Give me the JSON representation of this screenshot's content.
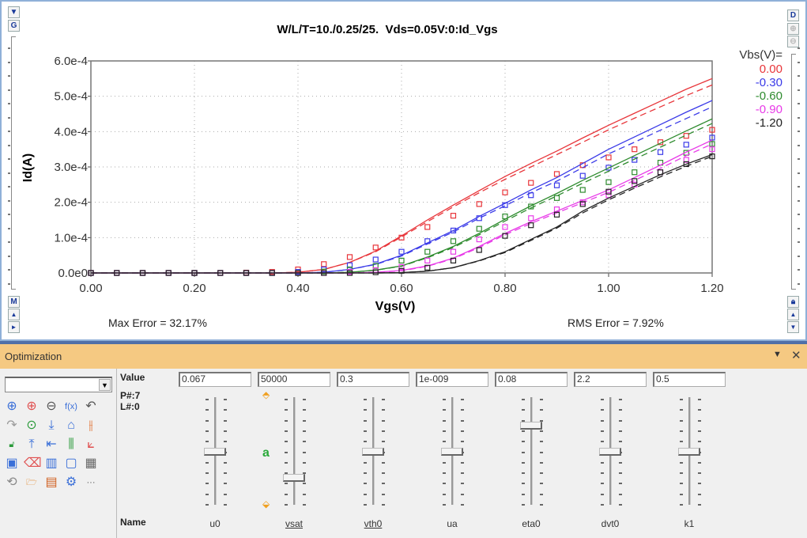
{
  "chart_window": {
    "left_toolbar": {
      "top_button": "▼",
      "g_button": "G",
      "m_button": "M",
      "up_button": "▲",
      "right_button": "►"
    },
    "right_toolbar": {
      "d_button": "D",
      "lock_icon": "lock-icon",
      "up_button": "▲",
      "down_button": "▼"
    },
    "max_error": "Max Error = 32.17%",
    "rms_error": "RMS Error = 7.92%"
  },
  "chart_data": {
    "type": "line",
    "title": "W/L/T=10./0.25/25.  Vds=0.05V:0:Id_Vgs",
    "xlabel": "Vgs(V)",
    "ylabel": "Id(A)",
    "xlim": [
      0,
      1.2
    ],
    "ylim": [
      0,
      0.0006
    ],
    "xticks": [
      "0.00",
      "0.20",
      "0.40",
      "0.60",
      "0.80",
      "1.00",
      "1.20"
    ],
    "yticks": [
      "0.0e0",
      "1.0e-4",
      "2.0e-4",
      "3.0e-4",
      "4.0e-4",
      "5.0e-4",
      "6.0e-4"
    ],
    "grid": true,
    "legend_title": "Vbs(V)=",
    "legend_placement": "top-right",
    "x": [
      0,
      0.05,
      0.1,
      0.15,
      0.2,
      0.25,
      0.3,
      0.35,
      0.4,
      0.45,
      0.5,
      0.55,
      0.6,
      0.65,
      0.7,
      0.75,
      0.8,
      0.85,
      0.9,
      0.95,
      1.0,
      1.05,
      1.1,
      1.15,
      1.2
    ],
    "series": [
      {
        "name": "0.00",
        "color": "#e8353a",
        "simulated": [
          0,
          0,
          0,
          0,
          0,
          0,
          0,
          0,
          2e-06,
          1e-05,
          3e-05,
          6.2e-05,
          0.000105,
          0.00015,
          0.000192,
          0.000233,
          0.000273,
          0.00031,
          0.000345,
          0.000382,
          0.000418,
          0.000452,
          0.000486,
          0.00052,
          0.00055
        ],
        "simulated_dashed": [
          0,
          0,
          0,
          0,
          0,
          0,
          0,
          0,
          2e-06,
          1e-05,
          3e-05,
          6e-05,
          0.000102,
          0.000145,
          0.000187,
          0.000227,
          0.000265,
          0.0003,
          0.000335,
          0.00037,
          0.000405,
          0.000438,
          0.00047,
          0.000502,
          0.000532
        ],
        "measured": [
          0,
          0,
          0,
          0,
          0,
          0,
          1e-06,
          3e-06,
          1e-05,
          2.5e-05,
          4.5e-05,
          7.2e-05,
          0.0001,
          0.00013,
          0.000162,
          0.000195,
          0.000228,
          0.000255,
          0.00028,
          0.000305,
          0.000327,
          0.00035,
          0.00037,
          0.000388,
          0.000405
        ]
      },
      {
        "name": "-0.30",
        "color": "#3a3ae8",
        "simulated": [
          0,
          0,
          0,
          0,
          0,
          0,
          0,
          0,
          0,
          2e-06,
          1e-05,
          2.5e-05,
          5e-05,
          8.5e-05,
          0.00012,
          0.00016,
          0.000197,
          0.000235,
          0.00027,
          0.00031,
          0.00035,
          0.000385,
          0.00042,
          0.000455,
          0.000488
        ],
        "simulated_dashed": [
          0,
          0,
          0,
          0,
          0,
          0,
          0,
          0,
          0,
          2e-06,
          1e-05,
          2.4e-05,
          4.8e-05,
          8.2e-05,
          0.000116,
          0.000155,
          0.00019,
          0.000227,
          0.00026,
          0.000298,
          0.000337,
          0.00037,
          0.000404,
          0.000437,
          0.00047
        ],
        "measured": [
          0,
          0,
          0,
          0,
          0,
          0,
          0,
          0,
          3e-06,
          1e-05,
          2.2e-05,
          3.8e-05,
          6e-05,
          9e-05,
          0.00012,
          0.000155,
          0.000192,
          0.00022,
          0.000248,
          0.000275,
          0.000298,
          0.00032,
          0.000342,
          0.000363,
          0.000383
        ]
      },
      {
        "name": "-0.60",
        "color": "#2e8b2e",
        "simulated": [
          0,
          0,
          0,
          0,
          0,
          0,
          0,
          0,
          0,
          0,
          2e-06,
          8e-06,
          2e-05,
          4.5e-05,
          7.5e-05,
          0.000112,
          0.000152,
          0.00019,
          0.000225,
          0.000262,
          0.000297,
          0.000332,
          0.000367,
          0.000402,
          0.000436
        ],
        "simulated_dashed": [
          0,
          0,
          0,
          0,
          0,
          0,
          0,
          0,
          0,
          0,
          2e-06,
          8e-06,
          1.9e-05,
          4.3e-05,
          7.2e-05,
          0.000108,
          0.000147,
          0.000184,
          0.000218,
          0.000254,
          0.000288,
          0.000322,
          0.000356,
          0.00039,
          0.000423
        ],
        "measured": [
          0,
          0,
          0,
          0,
          0,
          0,
          0,
          0,
          0,
          4e-06,
          1e-05,
          2e-05,
          3.5e-05,
          6e-05,
          9e-05,
          0.000125,
          0.00016,
          0.000188,
          0.000212,
          0.000235,
          0.000257,
          0.000285,
          0.000312,
          0.00034,
          0.000365
        ]
      },
      {
        "name": "-0.90",
        "color": "#e83ae8",
        "simulated": [
          0,
          0,
          0,
          0,
          0,
          0,
          0,
          0,
          0,
          0,
          0,
          2e-06,
          7e-06,
          2e-05,
          4.2e-05,
          7.5e-05,
          0.000112,
          0.000145,
          0.000175,
          0.000205,
          0.000235,
          0.00027,
          0.000305,
          0.000342,
          0.000376
        ],
        "simulated_dashed": [
          0,
          0,
          0,
          0,
          0,
          0,
          0,
          0,
          0,
          0,
          0,
          2e-06,
          6e-06,
          1.9e-05,
          4e-05,
          7.2e-05,
          0.000108,
          0.00014,
          0.00017,
          0.000199,
          0.000228,
          0.000262,
          0.000296,
          0.000332,
          0.000365
        ],
        "measured": [
          0,
          0,
          0,
          0,
          0,
          0,
          0,
          0,
          0,
          0,
          3e-06,
          8e-06,
          1.7e-05,
          3.5e-05,
          6e-05,
          9.5e-05,
          0.00013,
          0.000155,
          0.00018,
          0.0002,
          0.00022,
          0.00025,
          0.000285,
          0.00032,
          0.00035
        ]
      },
      {
        "name": "-1.20",
        "color": "#222222",
        "simulated": [
          0,
          0,
          0,
          0,
          0,
          0,
          0,
          0,
          0,
          0,
          0,
          0,
          1e-06,
          5e-06,
          1.5e-05,
          3.5e-05,
          6e-05,
          9.5e-05,
          0.00013,
          0.000175,
          0.000212,
          0.000245,
          0.000278,
          0.000308,
          0.000335
        ],
        "simulated_dashed": [
          0,
          0,
          0,
          0,
          0,
          0,
          0,
          0,
          0,
          0,
          0,
          0,
          1e-06,
          5e-06,
          1.5e-05,
          3.4e-05,
          5.8e-05,
          9.2e-05,
          0.000127,
          0.00017,
          0.000207,
          0.00024,
          0.000272,
          0.000302,
          0.00033
        ],
        "measured": [
          0,
          0,
          0,
          0,
          0,
          0,
          0,
          0,
          0,
          0,
          0,
          2e-06,
          6e-06,
          1.5e-05,
          3.5e-05,
          6.5e-05,
          0.000105,
          0.000135,
          0.000165,
          0.000195,
          0.00023,
          0.00026,
          0.000285,
          0.000308,
          0.00033
        ]
      }
    ]
  },
  "optimization": {
    "title": "Optimization",
    "combo_value": "",
    "value_label": "Value",
    "p_count": "P#:7",
    "l_count": "L#:0",
    "name_label": "Name",
    "tools": [
      {
        "icon": "zoom-in-icon",
        "glyph": "⊕",
        "color": "#3a6fd8"
      },
      {
        "icon": "add-icon",
        "glyph": "⊕",
        "color": "#e05050"
      },
      {
        "icon": "remove-icon",
        "glyph": "⊖",
        "color": "#555555"
      },
      {
        "icon": "function-icon",
        "glyph": "f(x)",
        "color": "#3a6fd8"
      },
      {
        "icon": "undo-icon",
        "glyph": "↶",
        "color": "#555555"
      },
      {
        "icon": "redo-icon",
        "glyph": "↷",
        "color": "#999999"
      },
      {
        "icon": "run-icon",
        "glyph": "⊙",
        "color": "#2a9a3a"
      },
      {
        "icon": "download-icon",
        "glyph": "⤓",
        "color": "#3a6fd8"
      },
      {
        "icon": "tag-icon",
        "glyph": "⌂",
        "color": "#3a6fd8"
      },
      {
        "icon": "adjust-icon",
        "glyph": "⫲",
        "color": "#e07030"
      },
      {
        "icon": "unlock-icon",
        "glyph": "🔓︎",
        "color": "#2a9a3a"
      },
      {
        "icon": "fit-height-icon",
        "glyph": "⤒",
        "color": "#3a6fd8"
      },
      {
        "icon": "arrow-left-bar-icon",
        "glyph": "⇤",
        "color": "#3a6fd8"
      },
      {
        "icon": "sliders-icon",
        "glyph": "⫼",
        "color": "#2a9a3a"
      },
      {
        "icon": "line-chart-icon",
        "glyph": "⟀",
        "color": "#e05050"
      },
      {
        "icon": "plot-icon",
        "glyph": "▣",
        "color": "#3a6fd8"
      },
      {
        "icon": "eraser-icon",
        "glyph": "⌫",
        "color": "#e05050"
      },
      {
        "icon": "mixer-icon",
        "glyph": "▥",
        "color": "#3a6fd8"
      },
      {
        "icon": "window-icon",
        "glyph": "▢",
        "color": "#3a6fd8"
      },
      {
        "icon": "table-icon",
        "glyph": "▦",
        "color": "#666666"
      },
      {
        "icon": "refresh-icon",
        "glyph": "⟲",
        "color": "#888888"
      },
      {
        "icon": "folder-open-icon",
        "glyph": "🗁︎",
        "color": "#e08020"
      },
      {
        "icon": "save-icon",
        "glyph": "▤",
        "color": "#d06020"
      },
      {
        "icon": "settings-icon",
        "glyph": "⚙",
        "color": "#3a6fd8"
      },
      {
        "icon": "more-icon",
        "glyph": "···",
        "color": "#555555"
      }
    ],
    "params": [
      {
        "name": "u0",
        "value": "0.067",
        "position": 0.5,
        "underlined": false
      },
      {
        "name": "vsat",
        "value": "50000",
        "position": 0.26,
        "underlined": true
      },
      {
        "name": "vth0",
        "value": "0.3",
        "position": 0.5,
        "underlined": true
      },
      {
        "name": "ua",
        "value": "1e-009",
        "position": 0.5,
        "underlined": false
      },
      {
        "name": "eta0",
        "value": "0.08",
        "position": 0.74,
        "underlined": false
      },
      {
        "name": "dvt0",
        "value": "2.2",
        "position": 0.5,
        "underlined": false
      },
      {
        "name": "k1",
        "value": "0.5",
        "position": 0.5,
        "underlined": false
      }
    ]
  }
}
